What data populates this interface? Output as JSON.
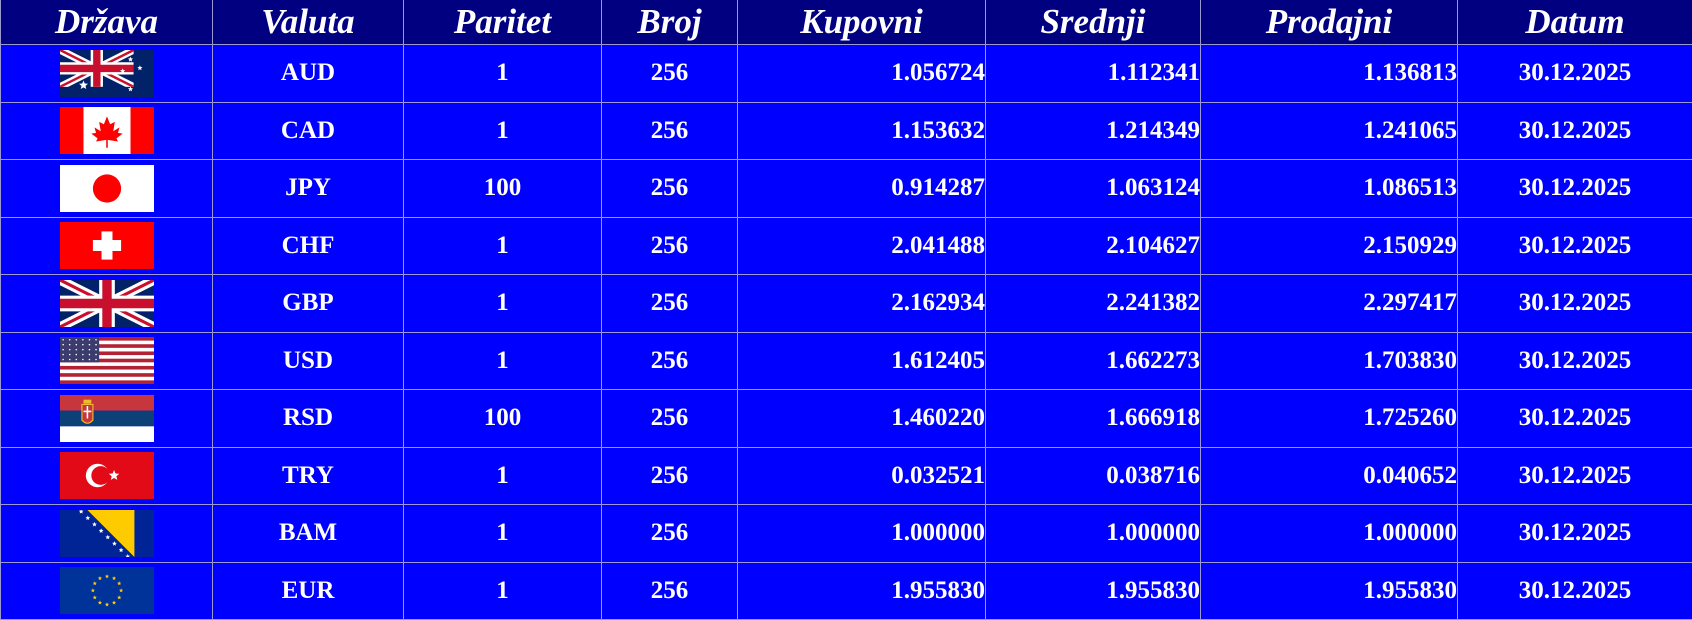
{
  "header": {
    "drzava": "Država",
    "valuta": "Valuta",
    "paritet": "Paritet",
    "broj": "Broj",
    "kupovni": "Kupovni",
    "srednji": "Srednji",
    "prodajni": "Prodajni",
    "datum": "Datum"
  },
  "colors": {
    "header_bg": "#000080",
    "row_bg": "#0000ff",
    "text": "#ffffff"
  },
  "rows": [
    {
      "flag": "australia-flag-icon",
      "valuta": "AUD",
      "paritet": "1",
      "broj": "256",
      "kupovni": "1.056724",
      "srednji": "1.112341",
      "prodajni": "1.136813",
      "datum": "30.12.2025"
    },
    {
      "flag": "canada-flag-icon",
      "valuta": "CAD",
      "paritet": "1",
      "broj": "256",
      "kupovni": "1.153632",
      "srednji": "1.214349",
      "prodajni": "1.241065",
      "datum": "30.12.2025"
    },
    {
      "flag": "japan-flag-icon",
      "valuta": "JPY",
      "paritet": "100",
      "broj": "256",
      "kupovni": "0.914287",
      "srednji": "1.063124",
      "prodajni": "1.086513",
      "datum": "30.12.2025"
    },
    {
      "flag": "switzerland-flag-icon",
      "valuta": "CHF",
      "paritet": "1",
      "broj": "256",
      "kupovni": "2.041488",
      "srednji": "2.104627",
      "prodajni": "2.150929",
      "datum": "30.12.2025"
    },
    {
      "flag": "uk-flag-icon",
      "valuta": "GBP",
      "paritet": "1",
      "broj": "256",
      "kupovni": "2.162934",
      "srednji": "2.241382",
      "prodajni": "2.297417",
      "datum": "30.12.2025"
    },
    {
      "flag": "usa-flag-icon",
      "valuta": "USD",
      "paritet": "1",
      "broj": "256",
      "kupovni": "1.612405",
      "srednji": "1.662273",
      "prodajni": "1.703830",
      "datum": "30.12.2025"
    },
    {
      "flag": "serbia-flag-icon",
      "valuta": "RSD",
      "paritet": "100",
      "broj": "256",
      "kupovni": "1.460220",
      "srednji": "1.666918",
      "prodajni": "1.725260",
      "datum": "30.12.2025"
    },
    {
      "flag": "turkey-flag-icon",
      "valuta": "TRY",
      "paritet": "1",
      "broj": "256",
      "kupovni": "0.032521",
      "srednji": "0.038716",
      "prodajni": "0.040652",
      "datum": "30.12.2025"
    },
    {
      "flag": "bosnia-flag-icon",
      "valuta": "BAM",
      "paritet": "1",
      "broj": "256",
      "kupovni": "1.000000",
      "srednji": "1.000000",
      "prodajni": "1.000000",
      "datum": "30.12.2025"
    },
    {
      "flag": "eu-flag-icon",
      "valuta": "EUR",
      "paritet": "1",
      "broj": "256",
      "kupovni": "1.955830",
      "srednji": "1.955830",
      "prodajni": "1.955830",
      "datum": "30.12.2025"
    }
  ]
}
